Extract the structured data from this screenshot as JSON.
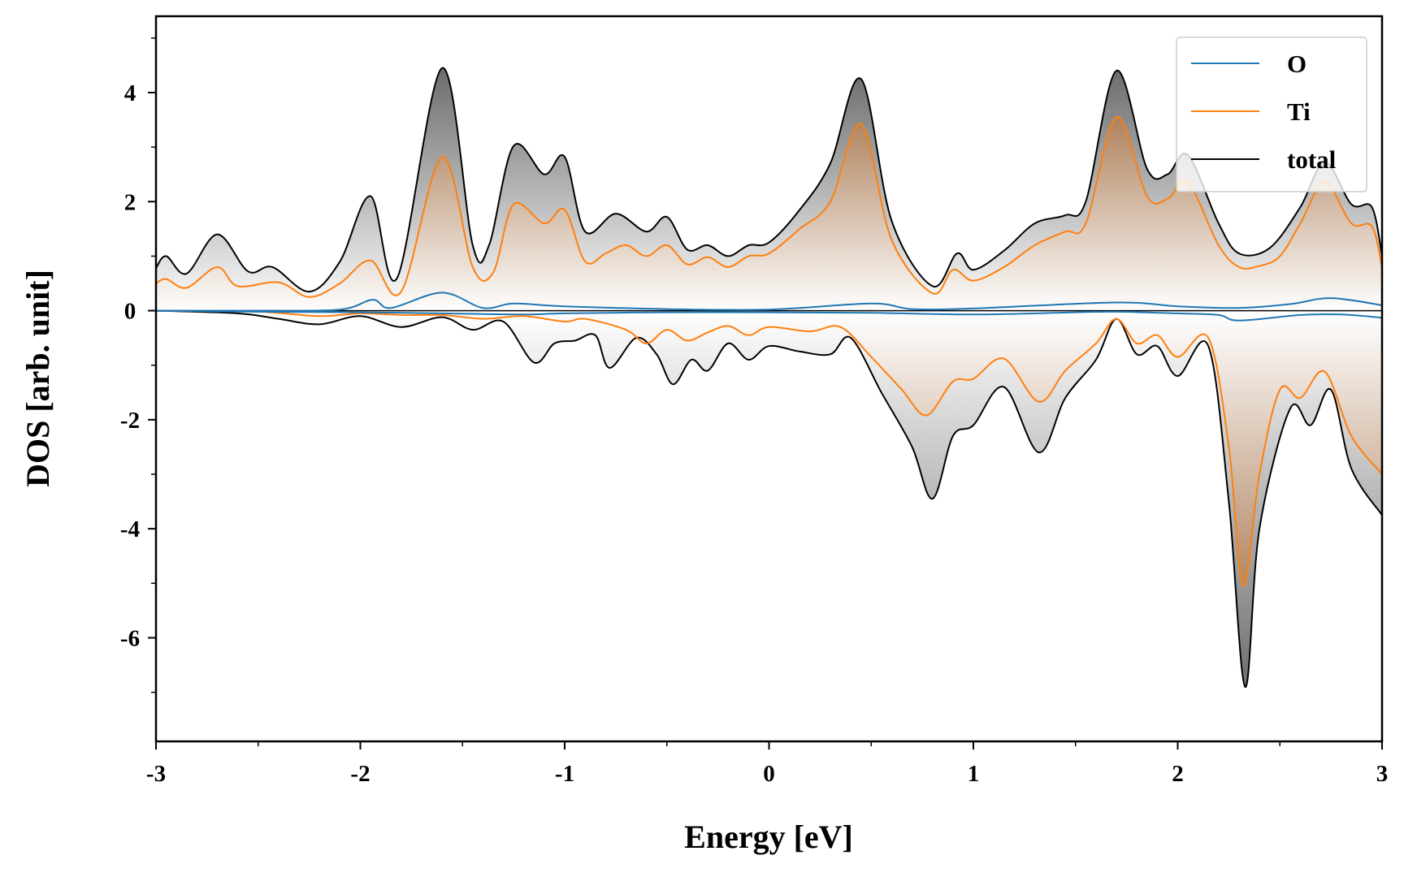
{
  "chart_data": {
    "type": "line",
    "title": "",
    "xlabel": "Energy [eV]",
    "ylabel": "DOS [arb. unit]",
    "xlim": [
      -3,
      3
    ],
    "ylim": [
      -7.9,
      5.4
    ],
    "xticks": [
      -3,
      -2,
      -1,
      0,
      1,
      2,
      3
    ],
    "xtick_labels": [
      "-3",
      "-2",
      "-1",
      "0",
      "1",
      "2",
      "3"
    ],
    "yticks": [
      -6,
      -4,
      -2,
      0,
      2,
      4
    ],
    "ytick_labels": [
      "-6",
      "-4",
      "-2",
      "0",
      "2",
      "4"
    ],
    "legend_position": "top-right",
    "grid": false,
    "series": [
      {
        "name": "O",
        "color": "#1f77b4",
        "spin_up": [
          [
            -3,
            0.0
          ],
          [
            -2.5,
            0.0
          ],
          [
            -2.1,
            0.02
          ],
          [
            -1.94,
            0.2
          ],
          [
            -1.85,
            0.05
          ],
          [
            -1.6,
            0.33
          ],
          [
            -1.4,
            0.05
          ],
          [
            -1.25,
            0.13
          ],
          [
            -1.0,
            0.08
          ],
          [
            -0.5,
            0.03
          ],
          [
            0.0,
            0.02
          ],
          [
            0.5,
            0.13
          ],
          [
            0.7,
            0.03
          ],
          [
            1.0,
            0.04
          ],
          [
            1.7,
            0.15
          ],
          [
            2.0,
            0.08
          ],
          [
            2.3,
            0.05
          ],
          [
            2.55,
            0.12
          ],
          [
            2.75,
            0.23
          ],
          [
            3.0,
            0.1
          ]
        ],
        "spin_down": [
          [
            -3,
            0.0
          ],
          [
            -2.5,
            -0.02
          ],
          [
            -2.0,
            -0.03
          ],
          [
            -1.6,
            -0.05
          ],
          [
            -1.2,
            -0.07
          ],
          [
            -1.0,
            -0.05
          ],
          [
            -0.5,
            -0.03
          ],
          [
            0.0,
            -0.03
          ],
          [
            0.5,
            -0.04
          ],
          [
            1.0,
            -0.07
          ],
          [
            1.5,
            -0.03
          ],
          [
            1.7,
            -0.02
          ],
          [
            2.0,
            -0.05
          ],
          [
            2.2,
            -0.08
          ],
          [
            2.3,
            -0.18
          ],
          [
            2.6,
            -0.08
          ],
          [
            2.8,
            -0.07
          ],
          [
            3.0,
            -0.13
          ]
        ]
      },
      {
        "name": "Ti",
        "color": "#ff7f0e",
        "spin_up": [
          [
            -3,
            0.5
          ],
          [
            -2.95,
            0.58
          ],
          [
            -2.85,
            0.42
          ],
          [
            -2.7,
            0.8
          ],
          [
            -2.6,
            0.45
          ],
          [
            -2.4,
            0.52
          ],
          [
            -2.25,
            0.25
          ],
          [
            -2.1,
            0.5
          ],
          [
            -1.95,
            0.92
          ],
          [
            -1.8,
            0.35
          ],
          [
            -1.6,
            2.82
          ],
          [
            -1.45,
            0.8
          ],
          [
            -1.35,
            0.7
          ],
          [
            -1.25,
            1.95
          ],
          [
            -1.1,
            1.6
          ],
          [
            -1.0,
            1.85
          ],
          [
            -0.9,
            0.9
          ],
          [
            -0.8,
            1.05
          ],
          [
            -0.7,
            1.2
          ],
          [
            -0.6,
            1.0
          ],
          [
            -0.5,
            1.2
          ],
          [
            -0.4,
            0.85
          ],
          [
            -0.3,
            0.98
          ],
          [
            -0.2,
            0.8
          ],
          [
            -0.1,
            1.0
          ],
          [
            0.0,
            1.05
          ],
          [
            0.15,
            1.5
          ],
          [
            0.3,
            2.0
          ],
          [
            0.45,
            3.42
          ],
          [
            0.6,
            1.3
          ],
          [
            0.8,
            0.32
          ],
          [
            0.9,
            0.75
          ],
          [
            1.0,
            0.55
          ],
          [
            1.15,
            0.8
          ],
          [
            1.3,
            1.2
          ],
          [
            1.45,
            1.45
          ],
          [
            1.55,
            1.6
          ],
          [
            1.7,
            3.55
          ],
          [
            1.85,
            2.1
          ],
          [
            1.95,
            2.05
          ],
          [
            2.05,
            2.35
          ],
          [
            2.2,
            1.2
          ],
          [
            2.3,
            0.8
          ],
          [
            2.4,
            0.82
          ],
          [
            2.5,
            1.0
          ],
          [
            2.6,
            1.6
          ],
          [
            2.72,
            2.35
          ],
          [
            2.85,
            1.6
          ],
          [
            2.95,
            1.55
          ],
          [
            3.0,
            0.8
          ]
        ],
        "spin_down": [
          [
            -3,
            0.0
          ],
          [
            -2.5,
            -0.02
          ],
          [
            -2.2,
            -0.1
          ],
          [
            -2.0,
            -0.05
          ],
          [
            -1.8,
            -0.08
          ],
          [
            -1.6,
            -0.08
          ],
          [
            -1.4,
            -0.15
          ],
          [
            -1.2,
            -0.1
          ],
          [
            -1.0,
            -0.2
          ],
          [
            -0.9,
            -0.15
          ],
          [
            -0.7,
            -0.35
          ],
          [
            -0.6,
            -0.6
          ],
          [
            -0.5,
            -0.35
          ],
          [
            -0.4,
            -0.55
          ],
          [
            -0.3,
            -0.4
          ],
          [
            -0.2,
            -0.28
          ],
          [
            -0.1,
            -0.45
          ],
          [
            0.0,
            -0.3
          ],
          [
            0.2,
            -0.38
          ],
          [
            0.35,
            -0.3
          ],
          [
            0.5,
            -0.85
          ],
          [
            0.65,
            -1.45
          ],
          [
            0.77,
            -1.92
          ],
          [
            0.9,
            -1.3
          ],
          [
            1.0,
            -1.25
          ],
          [
            1.15,
            -0.88
          ],
          [
            1.32,
            -1.67
          ],
          [
            1.45,
            -1.1
          ],
          [
            1.6,
            -0.6
          ],
          [
            1.7,
            -0.15
          ],
          [
            1.8,
            -0.6
          ],
          [
            1.9,
            -0.45
          ],
          [
            2.0,
            -0.85
          ],
          [
            2.15,
            -0.5
          ],
          [
            2.25,
            -2.5
          ],
          [
            2.32,
            -5.05
          ],
          [
            2.4,
            -3.0
          ],
          [
            2.5,
            -1.45
          ],
          [
            2.6,
            -1.6
          ],
          [
            2.72,
            -1.12
          ],
          [
            2.85,
            -2.3
          ],
          [
            3.0,
            -3.0
          ]
        ]
      },
      {
        "name": "total",
        "color": "#000000",
        "spin_up": [
          [
            -3,
            0.78
          ],
          [
            -2.95,
            1.0
          ],
          [
            -2.85,
            0.68
          ],
          [
            -2.7,
            1.4
          ],
          [
            -2.55,
            0.72
          ],
          [
            -2.43,
            0.8
          ],
          [
            -2.25,
            0.35
          ],
          [
            -2.1,
            0.9
          ],
          [
            -1.95,
            2.1
          ],
          [
            -1.82,
            0.6
          ],
          [
            -1.6,
            4.45
          ],
          [
            -1.45,
            1.2
          ],
          [
            -1.37,
            1.2
          ],
          [
            -1.25,
            3.02
          ],
          [
            -1.1,
            2.5
          ],
          [
            -1.0,
            2.82
          ],
          [
            -0.9,
            1.45
          ],
          [
            -0.75,
            1.78
          ],
          [
            -0.6,
            1.45
          ],
          [
            -0.5,
            1.72
          ],
          [
            -0.4,
            1.12
          ],
          [
            -0.3,
            1.2
          ],
          [
            -0.2,
            1.0
          ],
          [
            -0.1,
            1.2
          ],
          [
            0.0,
            1.25
          ],
          [
            0.15,
            1.85
          ],
          [
            0.3,
            2.7
          ],
          [
            0.45,
            4.25
          ],
          [
            0.6,
            1.65
          ],
          [
            0.8,
            0.45
          ],
          [
            0.92,
            1.05
          ],
          [
            1.0,
            0.75
          ],
          [
            1.15,
            1.1
          ],
          [
            1.3,
            1.6
          ],
          [
            1.45,
            1.75
          ],
          [
            1.55,
            2.0
          ],
          [
            1.7,
            4.4
          ],
          [
            1.85,
            2.6
          ],
          [
            1.95,
            2.5
          ],
          [
            2.05,
            2.85
          ],
          [
            2.2,
            1.6
          ],
          [
            2.3,
            1.05
          ],
          [
            2.45,
            1.15
          ],
          [
            2.6,
            1.9
          ],
          [
            2.72,
            2.72
          ],
          [
            2.85,
            1.95
          ],
          [
            2.95,
            1.9
          ],
          [
            3.0,
            1.0
          ]
        ],
        "spin_down": [
          [
            -3,
            0.0
          ],
          [
            -2.6,
            -0.05
          ],
          [
            -2.4,
            -0.15
          ],
          [
            -2.2,
            -0.25
          ],
          [
            -2.0,
            -0.1
          ],
          [
            -1.8,
            -0.3
          ],
          [
            -1.6,
            -0.12
          ],
          [
            -1.45,
            -0.35
          ],
          [
            -1.3,
            -0.2
          ],
          [
            -1.15,
            -0.95
          ],
          [
            -1.05,
            -0.6
          ],
          [
            -0.95,
            -0.55
          ],
          [
            -0.85,
            -0.45
          ],
          [
            -0.78,
            -1.05
          ],
          [
            -0.65,
            -0.5
          ],
          [
            -0.55,
            -0.8
          ],
          [
            -0.47,
            -1.35
          ],
          [
            -0.38,
            -0.9
          ],
          [
            -0.3,
            -1.1
          ],
          [
            -0.2,
            -0.6
          ],
          [
            -0.1,
            -0.9
          ],
          [
            0.0,
            -0.65
          ],
          [
            0.15,
            -0.75
          ],
          [
            0.3,
            -0.8
          ],
          [
            0.4,
            -0.5
          ],
          [
            0.55,
            -1.5
          ],
          [
            0.7,
            -2.5
          ],
          [
            0.8,
            -3.45
          ],
          [
            0.9,
            -2.3
          ],
          [
            1.0,
            -2.1
          ],
          [
            1.15,
            -1.4
          ],
          [
            1.32,
            -2.6
          ],
          [
            1.45,
            -1.6
          ],
          [
            1.6,
            -0.9
          ],
          [
            1.7,
            -0.15
          ],
          [
            1.8,
            -0.8
          ],
          [
            1.9,
            -0.65
          ],
          [
            2.0,
            -1.2
          ],
          [
            2.15,
            -0.65
          ],
          [
            2.25,
            -3.5
          ],
          [
            2.33,
            -6.9
          ],
          [
            2.4,
            -4.0
          ],
          [
            2.55,
            -1.8
          ],
          [
            2.65,
            -2.1
          ],
          [
            2.75,
            -1.45
          ],
          [
            2.85,
            -2.9
          ],
          [
            3.0,
            -3.75
          ]
        ]
      }
    ]
  }
}
